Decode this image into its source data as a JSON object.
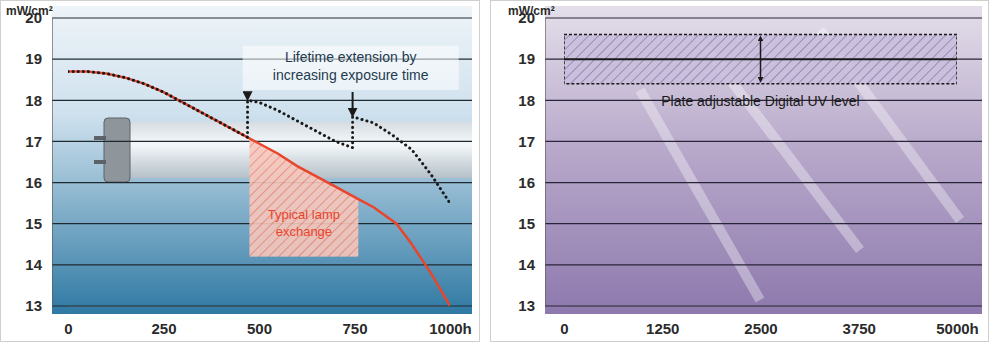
{
  "chart_data": [
    {
      "type": "line",
      "y_label": "mW/cm²",
      "xlim": [
        0,
        1000
      ],
      "xticks": [
        0,
        250,
        500,
        750,
        {
          "value": 1000,
          "label": "1000h"
        }
      ],
      "ylim": [
        13,
        20
      ],
      "yticks": [
        13,
        14,
        15,
        16,
        17,
        18,
        19,
        20
      ],
      "grid": true,
      "series": [
        {
          "color": "#e8452c",
          "line_style": "solid",
          "x": [
            0,
            50,
            100,
            150,
            200,
            250,
            300,
            350,
            400,
            470,
            500,
            550,
            600,
            650,
            700,
            760,
            800,
            860,
            900,
            950,
            1000
          ],
          "values": [
            18.7,
            18.7,
            18.65,
            18.55,
            18.4,
            18.2,
            17.95,
            17.7,
            17.45,
            17.1,
            16.95,
            16.7,
            16.4,
            16.15,
            15.9,
            15.6,
            15.4,
            15.0,
            14.5,
            13.8,
            13.0
          ]
        },
        {
          "color": "#1a1a1a",
          "line_style": "dotted",
          "x": [
            0,
            50,
            100,
            150,
            200,
            250,
            300,
            350,
            400,
            470,
            470,
            500,
            550,
            600,
            650,
            700,
            745,
            745,
            800,
            850,
            900,
            950,
            1000
          ],
          "values": [
            18.7,
            18.7,
            18.65,
            18.55,
            18.4,
            18.2,
            17.95,
            17.7,
            17.45,
            17.1,
            18.0,
            17.95,
            17.75,
            17.5,
            17.25,
            17.0,
            16.85,
            17.6,
            17.45,
            17.15,
            16.8,
            16.2,
            15.5
          ]
        }
      ],
      "annotation": [
        "Lifetime extension by",
        "increasing exposure time"
      ],
      "region": {
        "label": [
          "Typical lamp",
          "exchange"
        ],
        "x": [
          475,
          760
        ],
        "y_bottom": 14.2,
        "color": "#e8452c"
      }
    },
    {
      "type": "band",
      "y_label": "mW/cm²",
      "xlim": [
        0,
        5000
      ],
      "xticks": [
        0,
        1250,
        2500,
        3750,
        {
          "value": 5000,
          "label": "5000h"
        }
      ],
      "ylim": [
        13,
        20
      ],
      "yticks": [
        13,
        14,
        15,
        16,
        17,
        18,
        19,
        20
      ],
      "grid": true,
      "band": {
        "label": "Plate adjustable Digital UV level",
        "lower": 18.4,
        "upper": 19.6,
        "level": 19,
        "color": "#4a3a6e"
      }
    }
  ]
}
